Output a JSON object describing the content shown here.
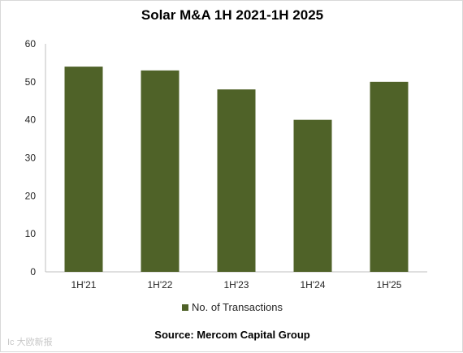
{
  "chart_data": {
    "type": "bar",
    "title": "Solar M&A 1H 2021-1H 2025",
    "categories": [
      "1H'21",
      "1H'22",
      "1H'23",
      "1H'24",
      "1H'25"
    ],
    "series": [
      {
        "name": "No. of Transactions",
        "values": [
          54,
          53,
          48,
          40,
          50
        ],
        "color": "#4f6228"
      }
    ],
    "ylim": [
      0,
      60
    ],
    "yticks": [
      0,
      10,
      20,
      30,
      40,
      50,
      60
    ],
    "grid": false,
    "legend": "bottom",
    "source": "Source: Mercom Capital Group"
  },
  "watermark": "Ic 大欧新报"
}
